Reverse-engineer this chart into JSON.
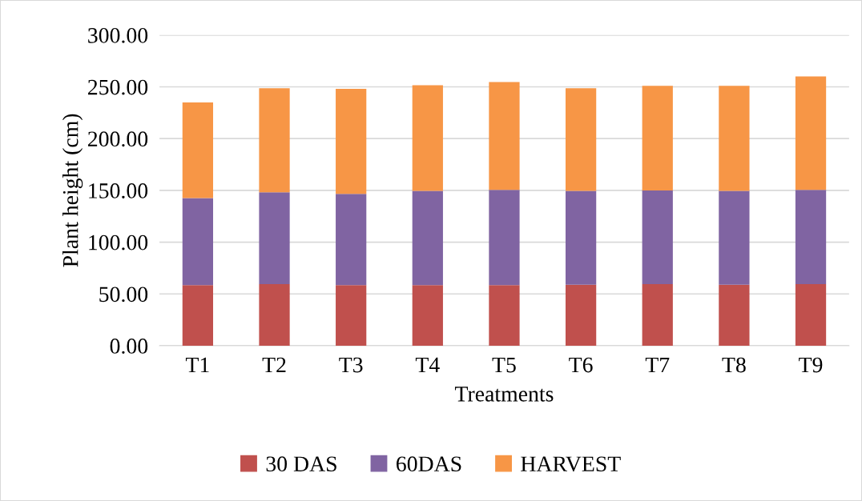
{
  "chart_data": {
    "type": "bar",
    "stacked": true,
    "xlabel": "Treatments",
    "ylabel": "Plant height (cm)",
    "categories": [
      "T1",
      "T2",
      "T3",
      "T4",
      "T5",
      "T6",
      "T7",
      "T8",
      "T9"
    ],
    "series": [
      {
        "name": "30 DAS",
        "color": "#c0504d",
        "values": [
          58.5,
          59.5,
          58.5,
          58.5,
          58.5,
          58.8,
          59.5,
          58.8,
          59.5
        ]
      },
      {
        "name": "60DAS",
        "color": "#8064a2",
        "values": [
          84.0,
          88.7,
          88.1,
          91.0,
          92.0,
          90.7,
          90.5,
          90.7,
          91.0
        ]
      },
      {
        "name": "HARVEST",
        "color": "#f79646",
        "values": [
          92.5,
          100.5,
          101.4,
          102.0,
          104.1,
          99.2,
          101.0,
          101.5,
          109.5
        ]
      }
    ],
    "ylim": [
      0,
      300
    ],
    "yticks": [
      {
        "value": 0,
        "label": "0.00"
      },
      {
        "value": 50,
        "label": "50.00"
      },
      {
        "value": 100,
        "label": "100.00"
      },
      {
        "value": 150,
        "label": "150.00"
      },
      {
        "value": 200,
        "label": "200.00"
      },
      {
        "value": 250,
        "label": "250.00"
      },
      {
        "value": 300,
        "label": "300.00"
      }
    ],
    "grid": "y",
    "legend": "bottom"
  }
}
